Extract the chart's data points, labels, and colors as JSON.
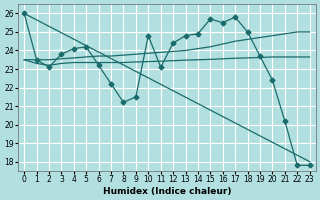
{
  "xlabel": "Humidex (Indice chaleur)",
  "background_color": "#b2e0e0",
  "grid_color": "#ffffff",
  "line_color": "#1a6b6b",
  "xlim": [
    -0.5,
    23.5
  ],
  "ylim": [
    17.5,
    26.5
  ],
  "yticks": [
    18,
    19,
    20,
    21,
    22,
    23,
    24,
    25,
    26
  ],
  "xticks": [
    0,
    1,
    2,
    3,
    4,
    5,
    6,
    7,
    8,
    9,
    10,
    11,
    12,
    13,
    14,
    15,
    16,
    17,
    18,
    19,
    20,
    21,
    22,
    23
  ],
  "series": [
    {
      "x": [
        0,
        1,
        2,
        3,
        4,
        5,
        6,
        7,
        8,
        9,
        10,
        11,
        12,
        13,
        14,
        15,
        16,
        17,
        18,
        19,
        20,
        21,
        22,
        23
      ],
      "y": [
        26.0,
        23.5,
        23.1,
        23.8,
        24.1,
        24.2,
        23.2,
        22.2,
        21.2,
        21.5,
        24.8,
        23.1,
        24.4,
        24.8,
        24.9,
        25.7,
        25.5,
        25.8,
        25.0,
        23.7,
        22.4,
        20.2,
        17.8,
        17.8
      ],
      "marker": "D",
      "markersize": 2.5
    },
    {
      "x": [
        0,
        1,
        2,
        3,
        4,
        5,
        6,
        7,
        8,
        9,
        10,
        11,
        12,
        13,
        14,
        15,
        16,
        17,
        18,
        19,
        20,
        21,
        22,
        23
      ],
      "y": [
        23.5,
        23.3,
        23.2,
        23.3,
        23.35,
        23.35,
        23.35,
        23.35,
        23.35,
        23.38,
        23.4,
        23.42,
        23.45,
        23.48,
        23.5,
        23.52,
        23.55,
        23.58,
        23.6,
        23.62,
        23.65,
        23.65,
        23.65,
        23.65
      ],
      "marker": null,
      "markersize": 0
    },
    {
      "x": [
        0,
        1,
        2,
        3,
        4,
        5,
        6,
        7,
        8,
        9,
        10,
        11,
        12,
        13,
        14,
        15,
        16,
        17,
        18,
        19,
        20,
        21,
        22,
        23
      ],
      "y": [
        23.5,
        23.5,
        23.5,
        23.55,
        23.6,
        23.65,
        23.7,
        23.7,
        23.75,
        23.8,
        23.85,
        23.9,
        23.95,
        24.0,
        24.1,
        24.2,
        24.35,
        24.5,
        24.6,
        24.7,
        24.8,
        24.9,
        25.0,
        25.0
      ],
      "marker": null,
      "markersize": 0
    },
    {
      "x": [
        0,
        23
      ],
      "y": [
        26.0,
        18.0
      ],
      "marker": null,
      "markersize": 0
    }
  ]
}
